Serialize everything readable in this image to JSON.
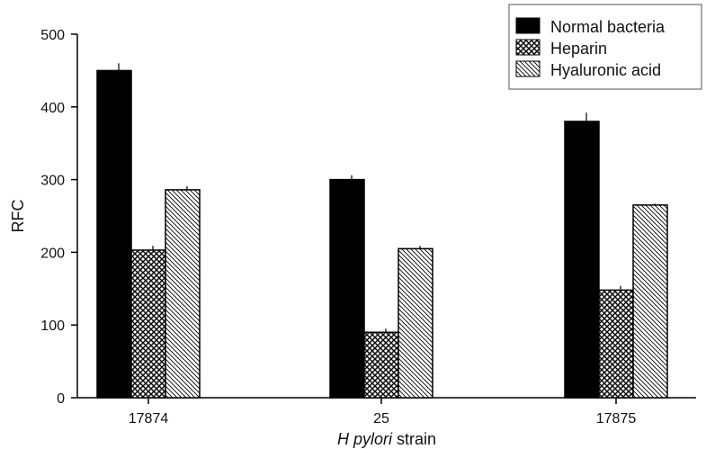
{
  "chart_data": {
    "type": "bar",
    "categories": [
      "17874",
      "25",
      "17875"
    ],
    "series": [
      {
        "name": "Normal bacteria",
        "values": [
          450,
          300,
          380
        ],
        "errors": [
          10,
          6,
          12
        ],
        "pattern": "solid"
      },
      {
        "name": "Heparin",
        "values": [
          203,
          90,
          148
        ],
        "errors": [
          6,
          5,
          6
        ],
        "pattern": "crosshatch"
      },
      {
        "name": "Hyaluronic acid",
        "values": [
          286,
          205,
          265
        ],
        "errors": [
          5,
          4,
          2
        ],
        "pattern": "diagonal"
      }
    ],
    "ylabel": "RFC",
    "xlabel_italic": "H pylori",
    "xlabel_rest": " strain",
    "ylim": [
      0,
      500
    ],
    "yticks": [
      0,
      100,
      200,
      300,
      400,
      500
    ],
    "grid": false,
    "legend_position": "top-right",
    "colors": {
      "bar": "#000000",
      "background": "#ffffff"
    }
  }
}
